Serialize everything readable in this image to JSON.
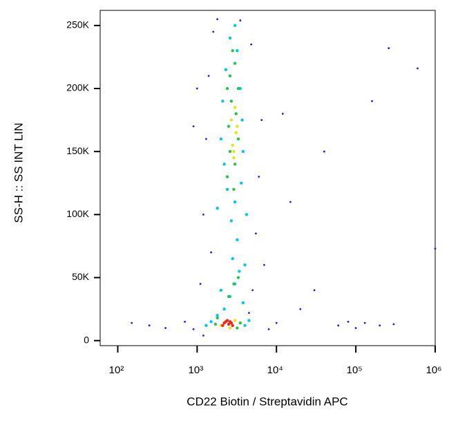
{
  "chart_data": {
    "type": "scatter",
    "x_label": "CD22 Biotin / Streptavidin APC",
    "y_label": "SS-H :: SS INT LIN",
    "x_scale": "log",
    "xlim": [
      60,
      1000000
    ],
    "xticks": [
      {
        "value": 100,
        "label": "10²"
      },
      {
        "value": 1000,
        "label": "10³"
      },
      {
        "value": 10000,
        "label": "10⁴"
      },
      {
        "value": 100000,
        "label": "10⁵"
      },
      {
        "value": 1000000,
        "label": "10⁶"
      }
    ],
    "ylim": [
      -4000,
      262000
    ],
    "yticks": [
      0,
      {
        "value": 50000,
        "label": "50K"
      },
      {
        "value": 100000,
        "label": "100K"
      },
      {
        "value": 150000,
        "label": "150K"
      },
      {
        "value": 200000,
        "label": "200K"
      },
      {
        "value": 250000,
        "label": "250K"
      }
    ],
    "series": [
      {
        "color": "#1a1aff",
        "x": [
          150,
          250,
          400,
          700,
          900,
          1100,
          1200,
          1300,
          1400,
          1600,
          1800,
          1500,
          1200,
          4500,
          5000,
          5500,
          6000,
          7000,
          8000,
          10000,
          6500,
          4800,
          3500,
          1000,
          60000,
          80000,
          100000,
          130000,
          200000,
          300000,
          40000,
          160000,
          260000,
          600000,
          1000000,
          15000,
          12000,
          30000,
          20000,
          900
        ],
        "y": [
          14000,
          12000,
          10000,
          15000,
          9000,
          45000,
          100000,
          160000,
          210000,
          245000,
          255000,
          70000,
          4000,
          22000,
          40000,
          85000,
          130000,
          60000,
          9000,
          14000,
          175000,
          235000,
          254000,
          200000,
          12000,
          15000,
          10000,
          14000,
          12000,
          13000,
          150000,
          190000,
          232000,
          216000,
          73000,
          110000,
          180000,
          40000,
          25000,
          170000
        ]
      },
      {
        "color": "#00c8e6",
        "x": [
          1800,
          2200,
          2600,
          3000,
          3400,
          2800,
          3200,
          2700,
          3000,
          2400,
          3600,
          2200,
          3800,
          2000,
          3700,
          2100,
          3500,
          2300,
          3200,
          2600,
          3000,
          1500,
          4000,
          4500,
          1300,
          3800,
          2000,
          4000,
          1800,
          4200
        ],
        "y": [
          20000,
          25000,
          35000,
          45000,
          55000,
          65000,
          80000,
          95000,
          110000,
          120000,
          125000,
          140000,
          150000,
          160000,
          175000,
          190000,
          200000,
          215000,
          230000,
          240000,
          250000,
          15000,
          12000,
          16000,
          12000,
          30000,
          40000,
          60000,
          105000,
          100000
        ]
      },
      {
        "color": "#22c84a",
        "x": [
          2400,
          3000,
          2600,
          3300,
          2500,
          3100,
          2700,
          3300,
          2600,
          3000,
          2800,
          2900,
          3300,
          2500,
          1700,
          3500,
          1800,
          3200,
          2900,
          2400
        ],
        "y": [
          130000,
          140000,
          150000,
          160000,
          170000,
          180000,
          190000,
          200000,
          210000,
          220000,
          230000,
          45000,
          50000,
          35000,
          13000,
          14000,
          18000,
          10000,
          120000,
          200000
        ]
      },
      {
        "color": "#e6e01e",
        "x": [
          2800,
          3100,
          2700,
          3000,
          2900,
          2000,
          3000,
          2600,
          2900,
          3200
        ],
        "y": [
          155000,
          165000,
          175000,
          185000,
          145000,
          12000,
          16000,
          10000,
          150000,
          170000
        ]
      },
      {
        "color": "#f02818",
        "x": [
          2200,
          2500,
          2400,
          2700,
          2100,
          2300,
          2800,
          2600
        ],
        "y": [
          14000,
          13000,
          16000,
          14000,
          12000,
          15000,
          12000,
          15000
        ]
      }
    ]
  }
}
